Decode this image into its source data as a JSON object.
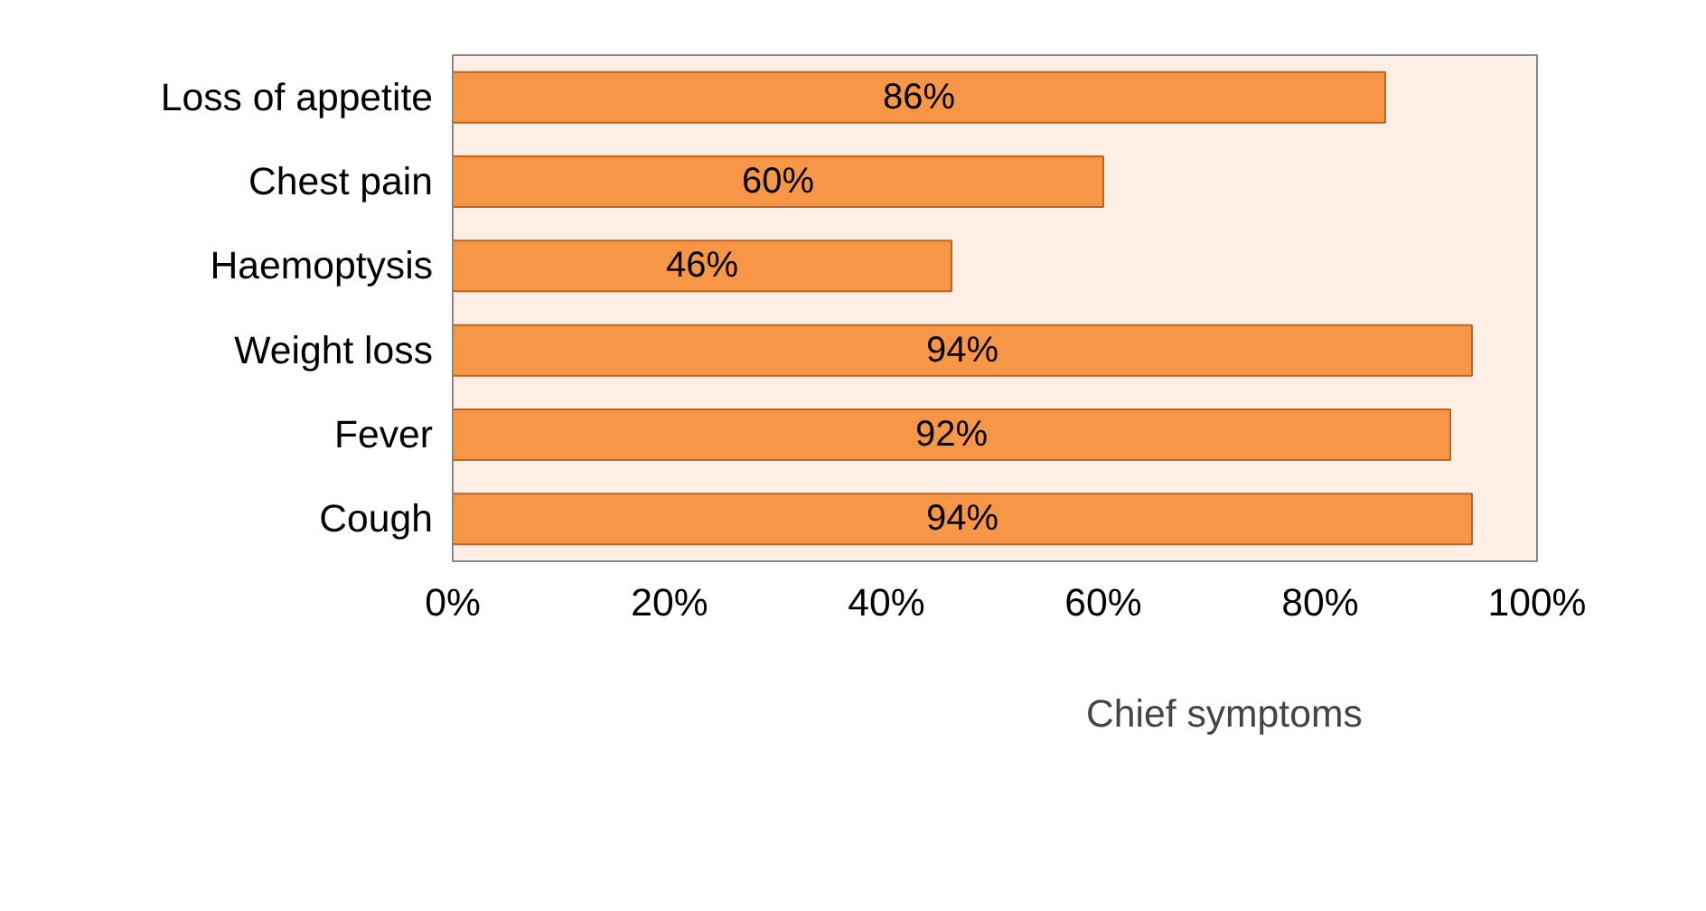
{
  "chart_data": {
    "type": "bar",
    "orientation": "horizontal",
    "categories": [
      "Loss of appetite",
      "Chest pain",
      "Haemoptysis",
      "Weight loss",
      "Fever",
      "Cough"
    ],
    "series": [
      {
        "name": "Chief symptoms",
        "color": "#f79646",
        "values": [
          86,
          60,
          46,
          94,
          92,
          94
        ],
        "value_labels": [
          "86%",
          "60%",
          "46%",
          "94%",
          "92%",
          "94%"
        ]
      }
    ],
    "xlim": [
      0,
      100
    ],
    "xticks": [
      {
        "value": 0,
        "label": "0%"
      },
      {
        "value": 20,
        "label": "20%"
      },
      {
        "value": 40,
        "label": "40%"
      },
      {
        "value": 60,
        "label": "60%"
      },
      {
        "value": 80,
        "label": "80%"
      },
      {
        "value": 100,
        "label": "100%"
      }
    ],
    "grid": false,
    "legend": "bottom"
  }
}
